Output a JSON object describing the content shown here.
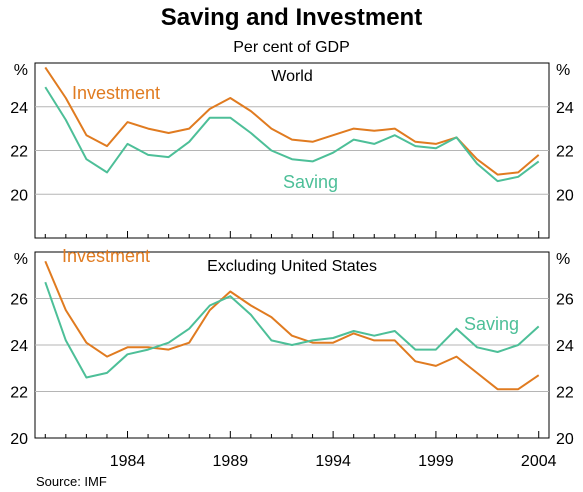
{
  "title": "Saving and Investment",
  "subtitle": "Per cent of GDP",
  "source": "Source: IMF",
  "colors": {
    "investment": "#e07b20",
    "saving": "#4dbf98"
  },
  "chart_data": [
    {
      "type": "line",
      "panel_title": "World",
      "unit_label": "%",
      "x": [
        1980,
        1981,
        1982,
        1983,
        1984,
        1985,
        1986,
        1987,
        1988,
        1989,
        1990,
        1991,
        1992,
        1993,
        1994,
        1995,
        1996,
        1997,
        1998,
        1999,
        2000,
        2001,
        2002,
        2003,
        2004
      ],
      "xlim": [
        1979.5,
        2004.5
      ],
      "xticks": [
        "1984",
        "1989",
        "1994",
        "1999",
        "2004"
      ],
      "ylim": [
        18,
        26
      ],
      "yticks": [
        "20",
        "22",
        "24",
        "%"
      ],
      "grid": true,
      "series": [
        {
          "name": "Investment",
          "color": "#e07b20",
          "values": [
            25.8,
            24.4,
            22.7,
            22.2,
            23.3,
            23.0,
            22.8,
            23.0,
            23.9,
            24.4,
            23.8,
            23.0,
            22.5,
            22.4,
            22.7,
            23.0,
            22.9,
            23.0,
            22.4,
            22.3,
            22.6,
            21.6,
            20.9,
            21.0,
            21.8
          ]
        },
        {
          "name": "Saving",
          "color": "#4dbf98",
          "values": [
            24.9,
            23.4,
            21.6,
            21.0,
            22.3,
            21.8,
            21.7,
            22.4,
            23.5,
            23.5,
            22.8,
            22.0,
            21.6,
            21.5,
            21.9,
            22.5,
            22.3,
            22.7,
            22.2,
            22.1,
            22.6,
            21.4,
            20.6,
            20.8,
            21.5
          ]
        }
      ]
    },
    {
      "type": "line",
      "panel_title": "Excluding United States",
      "unit_label": "%",
      "x": [
        1980,
        1981,
        1982,
        1983,
        1984,
        1985,
        1986,
        1987,
        1988,
        1989,
        1990,
        1991,
        1992,
        1993,
        1994,
        1995,
        1996,
        1997,
        1998,
        1999,
        2000,
        2001,
        2002,
        2003,
        2004
      ],
      "xlim": [
        1979.5,
        2004.5
      ],
      "xticks": [
        "1984",
        "1989",
        "1994",
        "1999",
        "2004"
      ],
      "ylim": [
        20,
        28
      ],
      "yticks": [
        "20",
        "22",
        "24",
        "26",
        "%"
      ],
      "grid": true,
      "series": [
        {
          "name": "Investment",
          "color": "#e07b20",
          "values": [
            27.6,
            25.5,
            24.1,
            23.5,
            23.9,
            23.9,
            23.8,
            24.1,
            25.5,
            26.3,
            25.7,
            25.2,
            24.4,
            24.1,
            24.1,
            24.5,
            24.2,
            24.2,
            23.3,
            23.1,
            23.5,
            22.8,
            22.1,
            22.1,
            22.7
          ]
        },
        {
          "name": "Saving",
          "color": "#4dbf98",
          "values": [
            26.7,
            24.2,
            22.6,
            22.8,
            23.6,
            23.8,
            24.1,
            24.7,
            25.7,
            26.1,
            25.3,
            24.2,
            24.0,
            24.2,
            24.3,
            24.6,
            24.4,
            24.6,
            23.8,
            23.8,
            24.7,
            23.9,
            23.7,
            24.0,
            24.8
          ]
        }
      ]
    }
  ]
}
